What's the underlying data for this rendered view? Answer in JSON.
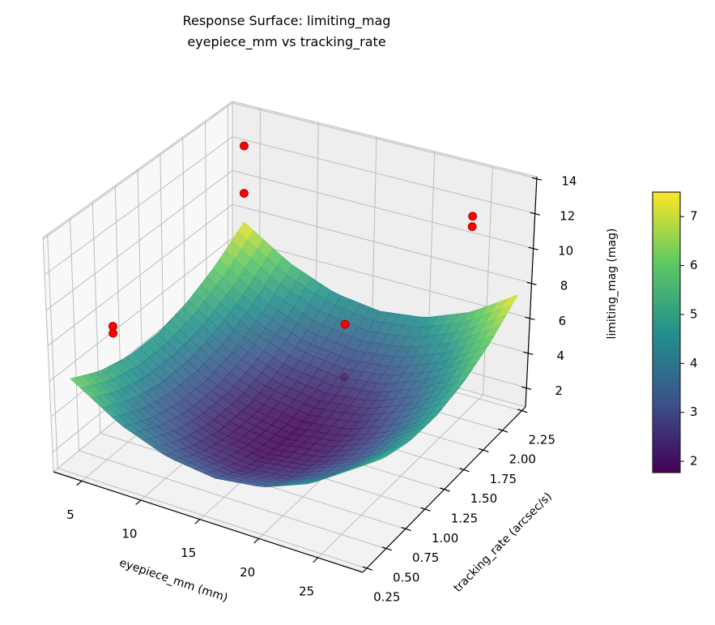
{
  "chart_data": {
    "type": "surface3d",
    "title": [
      "Response Surface: limiting_mag",
      "eyepiece_mm vs tracking_rate"
    ],
    "xlabel": "eyepiece_mm (mm)",
    "ylabel": "tracking_rate (arcsec/s)",
    "zlabel": "limiting_mag (mag)",
    "xlim": [
      2.6,
      28.8
    ],
    "ylim": [
      0.2,
      2.3
    ],
    "zlim": [
      0.9,
      14.1
    ],
    "xticks": [
      5,
      10,
      15,
      20,
      25
    ],
    "yticks": [
      "0.25",
      "0.50",
      "0.75",
      "1.00",
      "1.25",
      "1.50",
      "1.75",
      "2.00",
      "2.25"
    ],
    "zticks": [
      2,
      4,
      6,
      8,
      10,
      12,
      14
    ],
    "grid": true,
    "colormap": "viridis",
    "surface": {
      "x": [
        4,
        8,
        12,
        16,
        20,
        24,
        28
      ],
      "y": [
        0.25,
        0.583,
        0.917,
        1.25,
        1.583,
        1.917,
        2.25
      ],
      "z": [
        [
          6.25,
          4.55,
          3.53,
          3.19,
          3.53,
          4.55,
          6.25
        ],
        [
          5.38,
          3.68,
          2.65,
          2.31,
          2.65,
          3.68,
          5.38
        ],
        [
          4.93,
          3.23,
          2.21,
          1.86,
          2.21,
          3.23,
          4.93
        ],
        [
          4.91,
          3.21,
          2.18,
          1.84,
          2.18,
          3.21,
          4.91
        ],
        [
          5.32,
          3.61,
          2.59,
          2.25,
          2.59,
          3.61,
          5.32
        ],
        [
          6.15,
          4.44,
          3.42,
          3.08,
          3.42,
          4.44,
          6.15
        ],
        [
          7.41,
          5.71,
          4.68,
          4.34,
          4.68,
          5.71,
          7.41
        ]
      ]
    },
    "points": [
      {
        "x": 4.0,
        "y": 2.25,
        "z": 11.9,
        "hidden": false
      },
      {
        "x": 4.0,
        "y": 2.25,
        "z": 9.1,
        "hidden": false
      },
      {
        "x": 23.8,
        "y": 2.25,
        "z": 11.2,
        "hidden": false
      },
      {
        "x": 23.8,
        "y": 2.25,
        "z": 10.6,
        "hidden": false
      },
      {
        "x": 2.6,
        "y": 0.93,
        "z": 6.3,
        "hidden": false
      },
      {
        "x": 2.6,
        "y": 0.93,
        "z": 5.9,
        "hidden": false
      },
      {
        "x": 19,
        "y": 1.4,
        "z": 7.7,
        "hidden": false
      },
      {
        "x": 19,
        "y": 1.4,
        "z": 4.7,
        "hidden": true
      }
    ],
    "point_color": "#ff0000",
    "colorbar": {
      "range": [
        1.77,
        7.5
      ],
      "ticks": [
        2,
        3,
        4,
        5,
        6,
        7
      ]
    }
  }
}
